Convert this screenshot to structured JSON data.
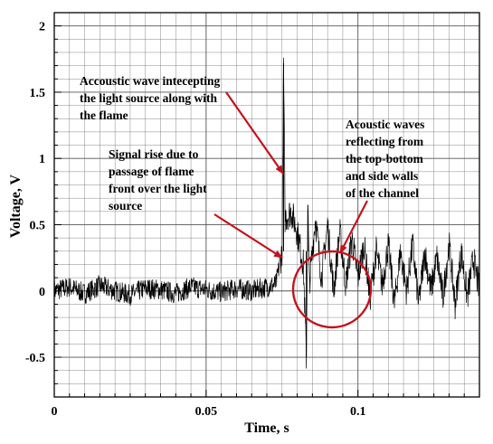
{
  "chart_data": {
    "type": "line",
    "xlabel": "Time, s",
    "ylabel": "Voltage, V",
    "xlim": [
      0,
      0.14
    ],
    "ylim": [
      -0.8,
      2.1
    ],
    "x_ticks": [
      0,
      0.05,
      0.1
    ],
    "x_tick_labels": [
      "0",
      "0.05",
      "0.1"
    ],
    "y_ticks": [
      -0.5,
      0,
      0.5,
      1,
      1.5,
      2
    ],
    "y_tick_labels": [
      "-0.5",
      "0",
      "0.5",
      "1",
      "1.5",
      "2"
    ],
    "grid": true,
    "series": [
      {
        "color": "#000000",
        "x": [
          0,
          0.005,
          0.01,
          0.015,
          0.02,
          0.025,
          0.03,
          0.035,
          0.04,
          0.045,
          0.05,
          0.055,
          0.06,
          0.065,
          0.07,
          0.073,
          0.075,
          0.0755,
          0.076,
          0.078,
          0.08,
          0.082,
          0.083,
          0.0835,
          0.084,
          0.086,
          0.088,
          0.09,
          0.092,
          0.094,
          0.096,
          0.098,
          0.1,
          0.102,
          0.104,
          0.106,
          0.108,
          0.11,
          0.112,
          0.114,
          0.116,
          0.118,
          0.12,
          0.122,
          0.124,
          0.126,
          0.128,
          0.13,
          0.132,
          0.134,
          0.136,
          0.138,
          0.14
        ],
        "y": [
          0.0,
          0.03,
          -0.02,
          0.04,
          0.0,
          -0.03,
          0.02,
          0.01,
          -0.02,
          0.03,
          0.01,
          -0.01,
          0.02,
          0.0,
          0.03,
          0.05,
          0.3,
          1.72,
          0.55,
          0.6,
          0.45,
          0.2,
          -0.5,
          0.65,
          0.05,
          0.55,
          0.1,
          0.5,
          0.0,
          0.45,
          0.05,
          0.4,
          0.1,
          0.35,
          -0.05,
          0.3,
          0.05,
          0.35,
          -0.1,
          0.3,
          0.0,
          0.35,
          -0.1,
          0.3,
          0.0,
          0.25,
          -0.05,
          0.35,
          -0.1,
          0.3,
          -0.05,
          0.25,
          0.0
        ]
      }
    ],
    "annotations": [
      {
        "lines": [
          "Accoustic wave intecepting",
          "the light source along with",
          "the flame"
        ]
      },
      {
        "lines": [
          "Signal rise due to",
          "passage of flame",
          "front over the light",
          "source"
        ]
      },
      {
        "lines": [
          "Acoustic waves",
          "reflecting from",
          "the top-bottom",
          "and side walls",
          "of the channel"
        ]
      }
    ],
    "colors": {
      "signal": "#000000",
      "arrows": "#c0151f",
      "highlight_circle": "#c0151f",
      "grid": "#555555"
    }
  }
}
